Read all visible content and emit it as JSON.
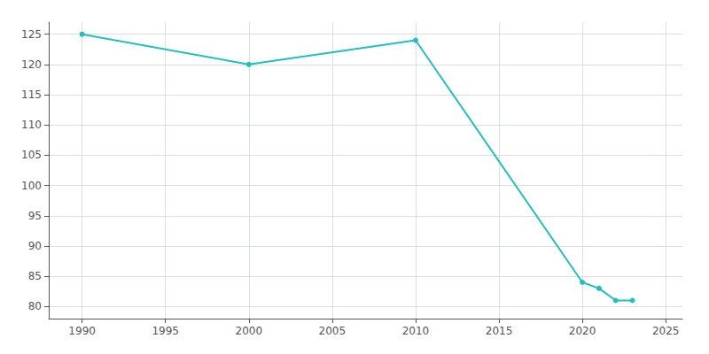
{
  "chart_data": {
    "type": "line",
    "x": [
      1990,
      2000,
      2010,
      2020,
      2021,
      2022,
      2023
    ],
    "values": [
      125,
      120,
      124,
      84,
      83,
      81,
      81
    ],
    "color": "#22BFBF",
    "marker": "circle",
    "xlim": [
      1988,
      2026
    ],
    "ylim": [
      78,
      127
    ],
    "xticks": [
      1990,
      1995,
      2000,
      2005,
      2010,
      2015,
      2020,
      2025
    ],
    "yticks": [
      80,
      85,
      90,
      95,
      100,
      105,
      110,
      115,
      120,
      125
    ],
    "grid": true
  }
}
